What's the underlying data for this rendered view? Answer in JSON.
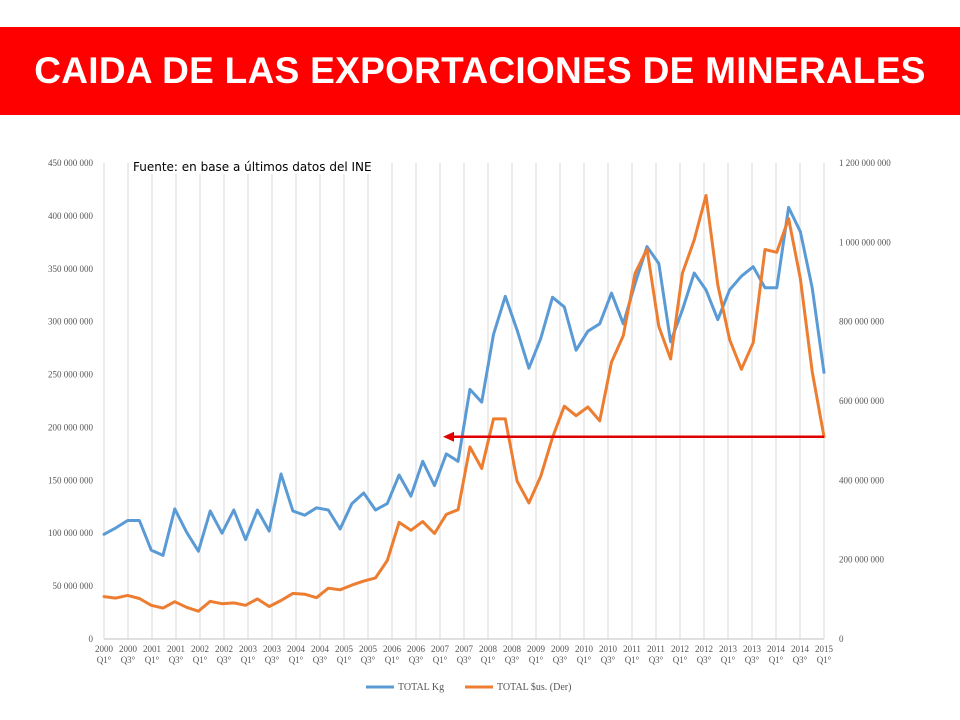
{
  "slide": {
    "title": "CAIDA DE LAS EXPORTACIONES DE MINERALES",
    "source_note": "Fuente: en base a últimos datos del INE"
  },
  "chart_data": {
    "type": "line",
    "title": "",
    "y_left_ticks": [
      "0",
      "50 000 000",
      "100 000 000",
      "150 000 000",
      "200 000 000",
      "250 000 000",
      "300 000 000",
      "350 000 000",
      "400 000 000",
      "450 000 000"
    ],
    "y_right_ticks": [
      "0",
      "200 000 000",
      "400 000 000",
      "600 000 000",
      "800 000 000",
      "1 000 000 000",
      "1 200 000 000"
    ],
    "ylim_left": [
      0,
      450000000
    ],
    "ylim_right": [
      0,
      1200000000
    ],
    "x_tick_labels": [
      [
        "2000",
        "Q1°"
      ],
      [
        "2000",
        "Q3°"
      ],
      [
        "2001",
        "Q1°"
      ],
      [
        "2001",
        "Q3°"
      ],
      [
        "2002",
        "Q1°"
      ],
      [
        "2002",
        "Q3°"
      ],
      [
        "2003",
        "Q1°"
      ],
      [
        "2003",
        "Q3°"
      ],
      [
        "2004",
        "Q1°"
      ],
      [
        "2004",
        "Q3°"
      ],
      [
        "2005",
        "Q1°"
      ],
      [
        "2005",
        "Q3°"
      ],
      [
        "2006",
        "Q1°"
      ],
      [
        "2006",
        "Q3°"
      ],
      [
        "2007",
        "Q1°"
      ],
      [
        "2007",
        "Q3°"
      ],
      [
        "2008",
        "Q1°"
      ],
      [
        "2008",
        "Q3°"
      ],
      [
        "2009",
        "Q1°"
      ],
      [
        "2009",
        "Q3°"
      ],
      [
        "2010",
        "Q1°"
      ],
      [
        "2010",
        "Q3°"
      ],
      [
        "2011",
        "Q1°"
      ],
      [
        "2011",
        "Q3°"
      ],
      [
        "2012",
        "Q1°"
      ],
      [
        "2012",
        "Q3°"
      ],
      [
        "2013",
        "Q1°"
      ],
      [
        "2013",
        "Q3°"
      ],
      [
        "2014",
        "Q1°"
      ],
      [
        "2014",
        "Q3°"
      ],
      [
        "2015",
        "Q1°"
      ]
    ],
    "grid": "vertical",
    "legend_position": "bottom",
    "series": [
      {
        "name": "TOTAL Kg",
        "axis": "left",
        "color": "#5b9bd5",
        "values": [
          99,
          105,
          112,
          112,
          84,
          79,
          123,
          101,
          83,
          121,
          100,
          122,
          94,
          122,
          102,
          156,
          121,
          117,
          124,
          122,
          104,
          128,
          138,
          122,
          128,
          155,
          135,
          168,
          145,
          175,
          168,
          236,
          224,
          288,
          324,
          292,
          256,
          284,
          323,
          314,
          273,
          291,
          298,
          327,
          298,
          336,
          371,
          355,
          281,
          311,
          346,
          330,
          302,
          330,
          343,
          352,
          332,
          332,
          408,
          385,
          332,
          252
        ]
      },
      {
        "name": "TOTAL $us. (Der)",
        "axis": "right",
        "color": "#ed7d31",
        "values": [
          107,
          103,
          110,
          102,
          85,
          78,
          94,
          80,
          70,
          95,
          89,
          91,
          85,
          101,
          82,
          97,
          115,
          113,
          104,
          128,
          124,
          136,
          146,
          154,
          198,
          294,
          274,
          296,
          266,
          314,
          326,
          484,
          430,
          555,
          555,
          398,
          343,
          410,
          508,
          587,
          563,
          585,
          550,
          698,
          765,
          922,
          983,
          788,
          706,
          922,
          1006,
          1118,
          893,
          755,
          680,
          747,
          982,
          975,
          1060,
          908,
          674,
          510
        ]
      }
    ]
  }
}
